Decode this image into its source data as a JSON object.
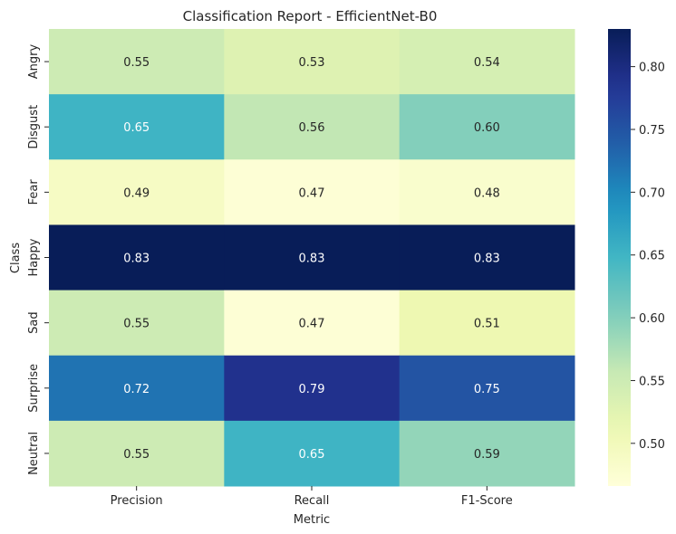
{
  "chart_data": {
    "type": "heatmap",
    "title": "Classification Report - EfficientNet-B0",
    "xlabel": "Metric",
    "ylabel": "Class",
    "columns": [
      "Precision",
      "Recall",
      "F1-Score"
    ],
    "rows": [
      "Angry",
      "Disgust",
      "Fear",
      "Happy",
      "Sad",
      "Surprise",
      "Neutral"
    ],
    "values": [
      [
        0.55,
        0.53,
        0.54
      ],
      [
        0.65,
        0.56,
        0.6
      ],
      [
        0.49,
        0.47,
        0.48
      ],
      [
        0.83,
        0.83,
        0.83
      ],
      [
        0.55,
        0.47,
        0.51
      ],
      [
        0.72,
        0.79,
        0.75
      ],
      [
        0.55,
        0.65,
        0.59
      ]
    ],
    "cell_labels": [
      [
        "0.55",
        "0.53",
        "0.54"
      ],
      [
        "0.65",
        "0.56",
        "0.60"
      ],
      [
        "0.49",
        "0.47",
        "0.48"
      ],
      [
        "0.83",
        "0.83",
        "0.83"
      ],
      [
        "0.55",
        "0.47",
        "0.51"
      ],
      [
        "0.72",
        "0.79",
        "0.75"
      ],
      [
        "0.55",
        "0.65",
        "0.59"
      ]
    ],
    "colormap": "YlGnBu",
    "vmin": 0.466,
    "vmax": 0.83,
    "colorbar": {
      "ticks": [
        0.5,
        0.55,
        0.6,
        0.65,
        0.7,
        0.75,
        0.8
      ],
      "tick_labels": [
        "0.50",
        "0.55",
        "0.60",
        "0.65",
        "0.70",
        "0.75",
        "0.80"
      ]
    }
  }
}
